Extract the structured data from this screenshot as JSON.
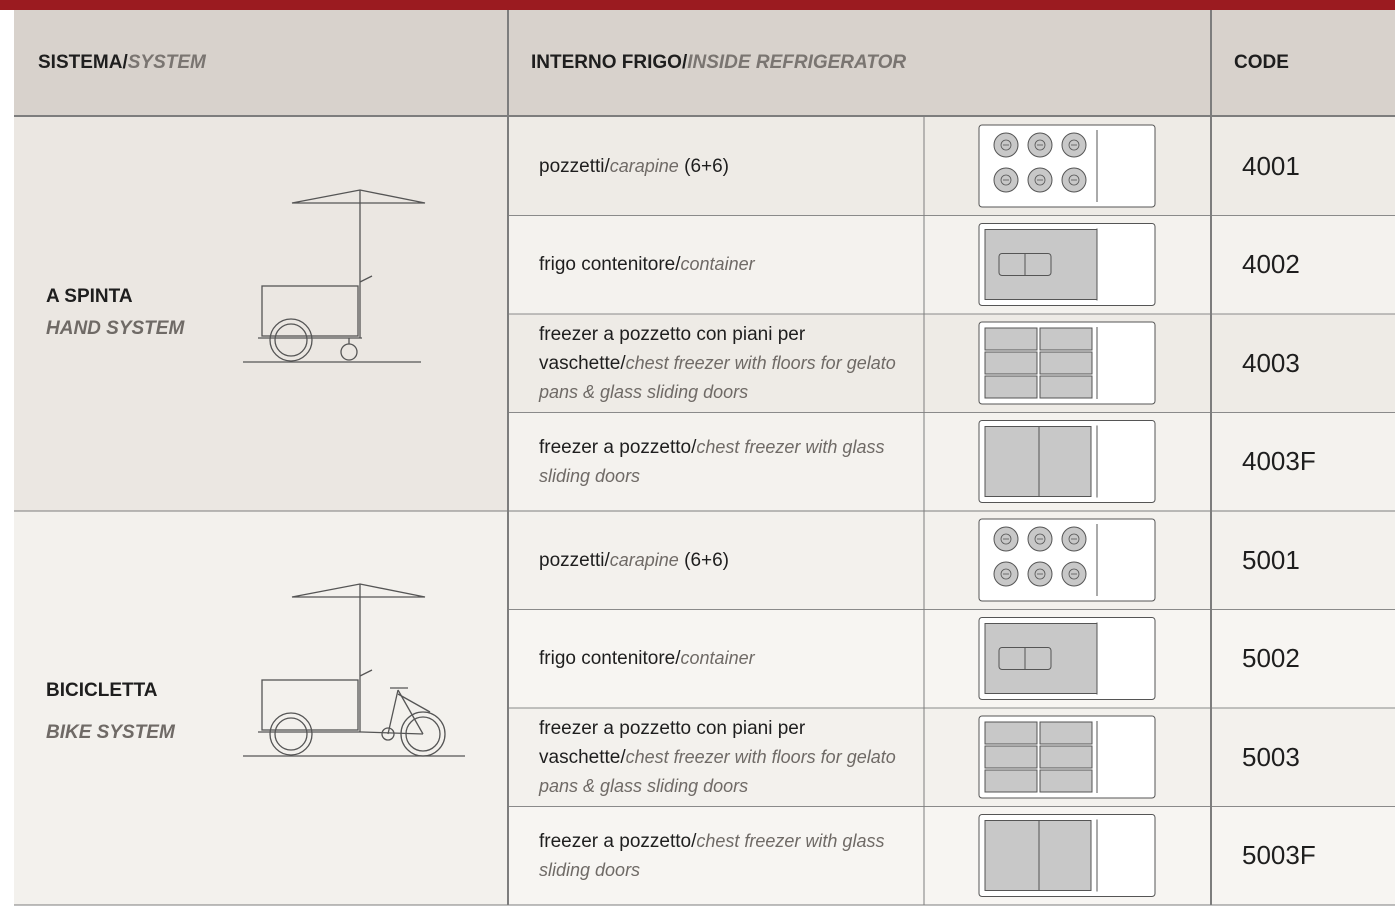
{
  "header": {
    "system": [
      {
        "text": "SISTEMA/"
      },
      {
        "text": "SYSTEM",
        "italic": true
      }
    ],
    "interior": [
      {
        "text": "INTERNO FRIGO/"
      },
      {
        "text": "INSIDE REFRIGERATOR",
        "italic": true
      }
    ],
    "code": "CODE"
  },
  "groups": [
    {
      "label": "A SPINTA",
      "sublabel": "HAND SYSTEM",
      "rows": [
        {
          "description": [
            {
              "text": "pozzetti/"
            },
            {
              "text": "carapine",
              "italic": true
            },
            {
              "text": "(6+6)"
            }
          ],
          "code": "4001"
        },
        {
          "description": [
            {
              "text": "frigo contenitore/"
            },
            {
              "text": "container",
              "italic": true
            }
          ],
          "code": "4002"
        },
        {
          "description": [
            {
              "text": "freezer a pozzetto con piani per vaschette/"
            },
            {
              "text": "chest freezer with floors for gelato pans & glass sliding doors",
              "italic": true
            }
          ],
          "code": "4003"
        },
        {
          "description": [
            {
              "text": "freezer a pozzetto/"
            },
            {
              "text": "chest freezer with glass sliding doors",
              "italic": true
            }
          ],
          "code": "4003F"
        }
      ]
    },
    {
      "label": "BICICLETTA",
      "sublabel": "BIKE SYSTEM",
      "rows": [
        {
          "description": [
            {
              "text": "pozzetti/"
            },
            {
              "text": "carapine",
              "italic": true
            },
            {
              "text": "(6+6)"
            }
          ],
          "code": "5001"
        },
        {
          "description": [
            {
              "text": "frigo contenitore/"
            },
            {
              "text": "container",
              "italic": true
            }
          ],
          "code": "5002"
        },
        {
          "description": [
            {
              "text": "freezer a pozzetto con piani per vaschette/"
            },
            {
              "text": "chest freezer with floors for gelato pans & glass sliding doors",
              "italic": true
            }
          ],
          "code": "5003"
        },
        {
          "description": [
            {
              "text": "freezer a pozzetto/"
            },
            {
              "text": "chest freezer with glass sliding doors",
              "italic": true
            }
          ],
          "code": "5003F"
        }
      ]
    }
  ]
}
